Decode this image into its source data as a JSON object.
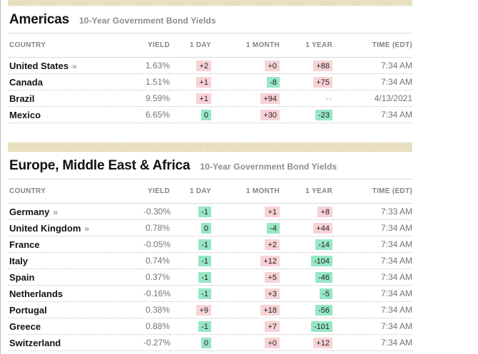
{
  "page": {
    "band_base_color": "#f1ebd4",
    "band_grid_color": "#e0d7af",
    "link_chevron": "»"
  },
  "badge_colors": {
    "up": "#f8d3d6",
    "down": "#97e7c5"
  },
  "sections": [
    {
      "title": "Americas",
      "subtitle": "10-Year Government Bond Yields",
      "columns": [
        "COUNTRY",
        "YIELD",
        "1 DAY",
        "1 MONTH",
        "1 YEAR",
        "TIME (EDT)"
      ],
      "rows": [
        {
          "country": "United States",
          "has_link": true,
          "yield": "1.63%",
          "one_day": {
            "text": "+2",
            "tone": "up"
          },
          "one_month": {
            "text": "+0",
            "tone": "up"
          },
          "one_year": {
            "text": "+88",
            "tone": "up"
          },
          "time": "7:34 AM"
        },
        {
          "country": "Canada",
          "has_link": false,
          "yield": "1.51%",
          "one_day": {
            "text": "+1",
            "tone": "up"
          },
          "one_month": {
            "text": "-8",
            "tone": "down"
          },
          "one_year": {
            "text": "+75",
            "tone": "up"
          },
          "time": "7:34 AM"
        },
        {
          "country": "Brazil",
          "has_link": false,
          "yield": "9.59%",
          "one_day": {
            "text": "+1",
            "tone": "up"
          },
          "one_month": {
            "text": "+94",
            "tone": "up"
          },
          "one_year": {
            "text": "--",
            "tone": "none"
          },
          "time": "4/13/2021"
        },
        {
          "country": "Mexico",
          "has_link": false,
          "yield": "6.65%",
          "one_day": {
            "text": "0",
            "tone": "down"
          },
          "one_month": {
            "text": "+30",
            "tone": "up"
          },
          "one_year": {
            "text": "-23",
            "tone": "down"
          },
          "time": "7:34 AM"
        }
      ]
    },
    {
      "title": "Europe, Middle East & Africa",
      "subtitle": "10-Year Government Bond Yields",
      "columns": [
        "COUNTRY",
        "YIELD",
        "1 DAY",
        "1 MONTH",
        "1 YEAR",
        "TIME (EDT)"
      ],
      "rows": [
        {
          "country": "Germany",
          "has_link": true,
          "yield": "-0.30%",
          "one_day": {
            "text": "-1",
            "tone": "down"
          },
          "one_month": {
            "text": "+1",
            "tone": "up"
          },
          "one_year": {
            "text": "+8",
            "tone": "up"
          },
          "time": "7:33 AM"
        },
        {
          "country": "United Kingdom",
          "has_link": true,
          "yield": "0.78%",
          "one_day": {
            "text": "0",
            "tone": "down"
          },
          "one_month": {
            "text": "-4",
            "tone": "down"
          },
          "one_year": {
            "text": "+44",
            "tone": "up"
          },
          "time": "7:34 AM"
        },
        {
          "country": "France",
          "has_link": false,
          "yield": "-0.05%",
          "one_day": {
            "text": "-1",
            "tone": "down"
          },
          "one_month": {
            "text": "+2",
            "tone": "up"
          },
          "one_year": {
            "text": "-14",
            "tone": "down"
          },
          "time": "7:34 AM"
        },
        {
          "country": "Italy",
          "has_link": false,
          "yield": "0.74%",
          "one_day": {
            "text": "-1",
            "tone": "down"
          },
          "one_month": {
            "text": "+12",
            "tone": "up"
          },
          "one_year": {
            "text": "-104",
            "tone": "down"
          },
          "time": "7:34 AM"
        },
        {
          "country": "Spain",
          "has_link": false,
          "yield": "0.37%",
          "one_day": {
            "text": "-1",
            "tone": "down"
          },
          "one_month": {
            "text": "+5",
            "tone": "up"
          },
          "one_year": {
            "text": "-46",
            "tone": "down"
          },
          "time": "7:34 AM"
        },
        {
          "country": "Netherlands",
          "has_link": false,
          "yield": "-0.16%",
          "one_day": {
            "text": "-1",
            "tone": "down"
          },
          "one_month": {
            "text": "+3",
            "tone": "up"
          },
          "one_year": {
            "text": "-5",
            "tone": "down"
          },
          "time": "7:34 AM"
        },
        {
          "country": "Portugal",
          "has_link": false,
          "yield": "0.38%",
          "one_day": {
            "text": "+9",
            "tone": "up"
          },
          "one_month": {
            "text": "+18",
            "tone": "up"
          },
          "one_year": {
            "text": "-56",
            "tone": "down"
          },
          "time": "7:34 AM"
        },
        {
          "country": "Greece",
          "has_link": false,
          "yield": "0.88%",
          "one_day": {
            "text": "-1",
            "tone": "down"
          },
          "one_month": {
            "text": "+7",
            "tone": "up"
          },
          "one_year": {
            "text": "-101",
            "tone": "down"
          },
          "time": "7:34 AM"
        },
        {
          "country": "Switzerland",
          "has_link": false,
          "yield": "-0.27%",
          "one_day": {
            "text": "0",
            "tone": "down"
          },
          "one_month": {
            "text": "+0",
            "tone": "up"
          },
          "one_year": {
            "text": "+12",
            "tone": "up"
          },
          "time": "7:34 AM"
        }
      ]
    }
  ]
}
